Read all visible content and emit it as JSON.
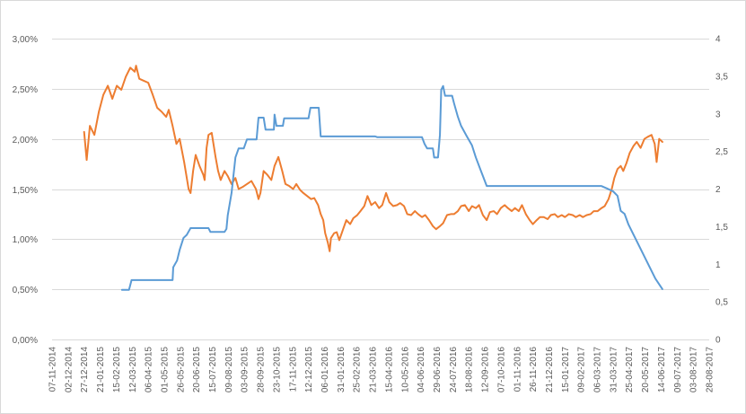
{
  "chart_data": {
    "type": "line",
    "grid": true,
    "legend": "none",
    "x_range": [
      "07-11-2014",
      "28-08-2017"
    ],
    "x_ticks": [
      "07-11-2014",
      "02-12-2014",
      "27-12-2014",
      "21-01-2015",
      "15-02-2015",
      "12-03-2015",
      "06-04-2015",
      "01-05-2015",
      "26-05-2015",
      "20-06-2015",
      "15-07-2015",
      "09-08-2015",
      "03-09-2015",
      "28-09-2015",
      "23-10-2015",
      "17-11-2015",
      "12-12-2015",
      "06-01-2016",
      "31-01-2016",
      "25-02-2016",
      "21-03-2016",
      "15-04-2016",
      "10-05-2016",
      "04-06-2016",
      "29-06-2016",
      "24-07-2016",
      "18-08-2016",
      "12-09-2016",
      "07-10-2016",
      "01-11-2016",
      "26-11-2016",
      "21-12-2016",
      "15-01-2017",
      "09-02-2017",
      "06-03-2017",
      "31-03-2017",
      "25-04-2017",
      "20-05-2017",
      "14-06-2017",
      "09-07-2017",
      "03-08-2017",
      "28-08-2017"
    ],
    "y_left": {
      "range": [
        0,
        3
      ],
      "ticks": [
        "0,00%",
        "0,50%",
        "1,00%",
        "1,50%",
        "2,00%",
        "2,50%",
        "3,00%"
      ]
    },
    "y_right": {
      "range": [
        0,
        4
      ],
      "ticks": [
        "0",
        "0,5",
        "1",
        "1,5",
        "2",
        "2,5",
        "3",
        "3,5",
        "4"
      ]
    },
    "series": [
      {
        "axis": "left",
        "color": "#ED7D31",
        "points": [
          [
            "27-12-2014",
            2.07
          ],
          [
            "31-12-2014",
            1.79
          ],
          [
            "05-01-2015",
            2.13
          ],
          [
            "12-01-2015",
            2.04
          ],
          [
            "19-01-2015",
            2.27
          ],
          [
            "26-01-2015",
            2.44
          ],
          [
            "02-02-2015",
            2.53
          ],
          [
            "09-02-2015",
            2.4
          ],
          [
            "16-02-2015",
            2.53
          ],
          [
            "23-02-2015",
            2.49
          ],
          [
            "02-03-2015",
            2.62
          ],
          [
            "09-03-2015",
            2.71
          ],
          [
            "16-03-2015",
            2.67
          ],
          [
            "18-03-2015",
            2.73
          ],
          [
            "23-03-2015",
            2.6
          ],
          [
            "30-03-2015",
            2.58
          ],
          [
            "06-04-2015",
            2.56
          ],
          [
            "13-04-2015",
            2.44
          ],
          [
            "20-04-2015",
            2.31
          ],
          [
            "27-04-2015",
            2.27
          ],
          [
            "04-05-2015",
            2.22
          ],
          [
            "08-05-2015",
            2.29
          ],
          [
            "14-05-2015",
            2.13
          ],
          [
            "20-05-2015",
            1.95
          ],
          [
            "25-05-2015",
            2.0
          ],
          [
            "01-06-2015",
            1.77
          ],
          [
            "08-06-2015",
            1.5
          ],
          [
            "11-06-2015",
            1.46
          ],
          [
            "15-06-2015",
            1.68
          ],
          [
            "19-06-2015",
            1.84
          ],
          [
            "25-06-2015",
            1.73
          ],
          [
            "01-07-2015",
            1.64
          ],
          [
            "03-07-2015",
            1.59
          ],
          [
            "06-07-2015",
            1.91
          ],
          [
            "09-07-2015",
            2.04
          ],
          [
            "14-07-2015",
            2.06
          ],
          [
            "20-07-2015",
            1.82
          ],
          [
            "24-07-2015",
            1.68
          ],
          [
            "28-07-2015",
            1.59
          ],
          [
            "03-08-2015",
            1.68
          ],
          [
            "08-08-2015",
            1.63
          ],
          [
            "14-08-2015",
            1.55
          ],
          [
            "20-08-2015",
            1.61
          ],
          [
            "25-08-2015",
            1.5
          ],
          [
            "31-08-2015",
            1.52
          ],
          [
            "07-09-2015",
            1.55
          ],
          [
            "14-09-2015",
            1.58
          ],
          [
            "21-09-2015",
            1.5
          ],
          [
            "25-09-2015",
            1.4
          ],
          [
            "28-09-2015",
            1.46
          ],
          [
            "03-10-2015",
            1.68
          ],
          [
            "09-10-2015",
            1.64
          ],
          [
            "15-10-2015",
            1.59
          ],
          [
            "20-10-2015",
            1.73
          ],
          [
            "26-10-2015",
            1.82
          ],
          [
            "01-11-2015",
            1.68
          ],
          [
            "06-11-2015",
            1.55
          ],
          [
            "12-11-2015",
            1.53
          ],
          [
            "18-11-2015",
            1.5
          ],
          [
            "23-11-2015",
            1.55
          ],
          [
            "29-11-2015",
            1.49
          ],
          [
            "04-12-2015",
            1.46
          ],
          [
            "10-12-2015",
            1.43
          ],
          [
            "16-12-2015",
            1.4
          ],
          [
            "21-12-2015",
            1.41
          ],
          [
            "27-12-2015",
            1.34
          ],
          [
            "31-12-2015",
            1.25
          ],
          [
            "04-01-2016",
            1.19
          ],
          [
            "07-01-2016",
            1.06
          ],
          [
            "11-01-2016",
            0.97
          ],
          [
            "14-01-2016",
            0.88
          ],
          [
            "16-01-2016",
            1.01
          ],
          [
            "21-01-2016",
            1.06
          ],
          [
            "25-01-2016",
            1.07
          ],
          [
            "29-01-2016",
            0.99
          ],
          [
            "04-02-2016",
            1.1
          ],
          [
            "09-02-2016",
            1.19
          ],
          [
            "15-02-2016",
            1.15
          ],
          [
            "20-02-2016",
            1.21
          ],
          [
            "26-02-2016",
            1.24
          ],
          [
            "02-03-2016",
            1.28
          ],
          [
            "08-03-2016",
            1.33
          ],
          [
            "13-03-2016",
            1.43
          ],
          [
            "19-03-2016",
            1.34
          ],
          [
            "25-03-2016",
            1.37
          ],
          [
            "31-03-2016",
            1.31
          ],
          [
            "05-04-2016",
            1.34
          ],
          [
            "11-04-2016",
            1.46
          ],
          [
            "16-04-2016",
            1.37
          ],
          [
            "22-04-2016",
            1.33
          ],
          [
            "28-04-2016",
            1.34
          ],
          [
            "03-05-2016",
            1.36
          ],
          [
            "09-05-2016",
            1.33
          ],
          [
            "14-05-2016",
            1.25
          ],
          [
            "20-05-2016",
            1.24
          ],
          [
            "26-05-2016",
            1.28
          ],
          [
            "31-05-2016",
            1.25
          ],
          [
            "06-06-2016",
            1.22
          ],
          [
            "11-06-2016",
            1.24
          ],
          [
            "17-06-2016",
            1.19
          ],
          [
            "23-06-2016",
            1.13
          ],
          [
            "28-06-2016",
            1.1
          ],
          [
            "04-07-2016",
            1.13
          ],
          [
            "09-07-2016",
            1.16
          ],
          [
            "15-07-2016",
            1.24
          ],
          [
            "21-07-2016",
            1.25
          ],
          [
            "26-07-2016",
            1.25
          ],
          [
            "01-08-2016",
            1.28
          ],
          [
            "06-08-2016",
            1.33
          ],
          [
            "12-08-2016",
            1.34
          ],
          [
            "18-08-2016",
            1.28
          ],
          [
            "23-08-2016",
            1.33
          ],
          [
            "29-08-2016",
            1.31
          ],
          [
            "03-09-2016",
            1.34
          ],
          [
            "09-09-2016",
            1.24
          ],
          [
            "15-09-2016",
            1.19
          ],
          [
            "20-09-2016",
            1.27
          ],
          [
            "26-09-2016",
            1.28
          ],
          [
            "01-10-2016",
            1.25
          ],
          [
            "07-10-2016",
            1.31
          ],
          [
            "13-10-2016",
            1.34
          ],
          [
            "18-10-2016",
            1.31
          ],
          [
            "24-10-2016",
            1.28
          ],
          [
            "29-10-2016",
            1.31
          ],
          [
            "04-11-2016",
            1.28
          ],
          [
            "09-11-2016",
            1.34
          ],
          [
            "15-11-2016",
            1.25
          ],
          [
            "21-11-2016",
            1.19
          ],
          [
            "26-11-2016",
            1.15
          ],
          [
            "02-12-2016",
            1.19
          ],
          [
            "07-12-2016",
            1.22
          ],
          [
            "13-12-2016",
            1.22
          ],
          [
            "19-12-2016",
            1.2
          ],
          [
            "24-12-2016",
            1.24
          ],
          [
            "30-12-2016",
            1.25
          ],
          [
            "04-01-2017",
            1.22
          ],
          [
            "10-01-2017",
            1.24
          ],
          [
            "15-01-2017",
            1.22
          ],
          [
            "21-01-2017",
            1.25
          ],
          [
            "27-01-2017",
            1.24
          ],
          [
            "01-02-2017",
            1.22
          ],
          [
            "07-02-2017",
            1.24
          ],
          [
            "12-02-2017",
            1.22
          ],
          [
            "18-02-2017",
            1.24
          ],
          [
            "24-02-2017",
            1.25
          ],
          [
            "01-03-2017",
            1.28
          ],
          [
            "07-03-2017",
            1.28
          ],
          [
            "13-03-2017",
            1.31
          ],
          [
            "18-03-2017",
            1.33
          ],
          [
            "24-03-2017",
            1.4
          ],
          [
            "29-03-2017",
            1.5
          ],
          [
            "02-04-2017",
            1.61
          ],
          [
            "07-04-2017",
            1.7
          ],
          [
            "12-04-2017",
            1.73
          ],
          [
            "16-04-2017",
            1.68
          ],
          [
            "21-04-2017",
            1.76
          ],
          [
            "26-04-2017",
            1.86
          ],
          [
            "02-05-2017",
            1.93
          ],
          [
            "07-05-2017",
            1.97
          ],
          [
            "13-05-2017",
            1.91
          ],
          [
            "19-05-2017",
            2.0
          ],
          [
            "24-05-2017",
            2.02
          ],
          [
            "30-05-2017",
            2.04
          ],
          [
            "04-06-2017",
            1.95
          ],
          [
            "07-06-2017",
            1.77
          ],
          [
            "11-06-2017",
            2.0
          ],
          [
            "16-06-2017",
            1.97
          ]
        ]
      },
      {
        "axis": "right",
        "color": "#5B9BD5",
        "points": [
          [
            "24-02-2015",
            0.66
          ],
          [
            "07-03-2015",
            0.66
          ],
          [
            "11-03-2015",
            0.79
          ],
          [
            "14-05-2015",
            0.79
          ],
          [
            "15-05-2015",
            0.96
          ],
          [
            "21-05-2015",
            1.05
          ],
          [
            "25-05-2015",
            1.19
          ],
          [
            "31-05-2015",
            1.35
          ],
          [
            "05-06-2015",
            1.39
          ],
          [
            "11-06-2015",
            1.48
          ],
          [
            "09-07-2015",
            1.48
          ],
          [
            "12-07-2015",
            1.43
          ],
          [
            "03-08-2015",
            1.43
          ],
          [
            "06-08-2015",
            1.47
          ],
          [
            "08-08-2015",
            1.65
          ],
          [
            "14-08-2015",
            1.95
          ],
          [
            "20-08-2015",
            2.42
          ],
          [
            "25-08-2015",
            2.54
          ],
          [
            "02-09-2015",
            2.54
          ],
          [
            "07-09-2015",
            2.66
          ],
          [
            "22-09-2015",
            2.66
          ],
          [
            "25-09-2015",
            2.95
          ],
          [
            "03-10-2015",
            2.95
          ],
          [
            "06-10-2015",
            2.79
          ],
          [
            "19-10-2015",
            2.79
          ],
          [
            "20-10-2015",
            2.99
          ],
          [
            "23-10-2015",
            2.84
          ],
          [
            "02-11-2015",
            2.84
          ],
          [
            "04-11-2015",
            2.94
          ],
          [
            "12-12-2015",
            2.94
          ],
          [
            "15-12-2015",
            3.08
          ],
          [
            "28-12-2015",
            3.08
          ],
          [
            "31-12-2015",
            2.7
          ],
          [
            "25-03-2016",
            2.7
          ],
          [
            "28-03-2016",
            2.69
          ],
          [
            "06-06-2016",
            2.69
          ],
          [
            "10-06-2016",
            2.6
          ],
          [
            "14-06-2016",
            2.54
          ],
          [
            "23-06-2016",
            2.54
          ],
          [
            "25-06-2016",
            2.42
          ],
          [
            "01-07-2016",
            2.42
          ],
          [
            "04-07-2016",
            2.72
          ],
          [
            "06-07-2016",
            3.32
          ],
          [
            "09-07-2016",
            3.37
          ],
          [
            "12-07-2016",
            3.24
          ],
          [
            "23-07-2016",
            3.24
          ],
          [
            "26-07-2016",
            3.14
          ],
          [
            "01-08-2016",
            2.96
          ],
          [
            "06-08-2016",
            2.84
          ],
          [
            "15-08-2016",
            2.7
          ],
          [
            "23-08-2016",
            2.58
          ],
          [
            "29-08-2016",
            2.42
          ],
          [
            "06-09-2016",
            2.24
          ],
          [
            "15-09-2016",
            2.04
          ],
          [
            "13-03-2017",
            2.04
          ],
          [
            "21-03-2017",
            2.01
          ],
          [
            "31-03-2017",
            1.97
          ],
          [
            "07-04-2017",
            1.91
          ],
          [
            "12-04-2017",
            1.71
          ],
          [
            "18-04-2017",
            1.67
          ],
          [
            "24-04-2017",
            1.53
          ],
          [
            "08-05-2017",
            1.29
          ],
          [
            "22-05-2017",
            1.05
          ],
          [
            "05-06-2017",
            0.81
          ],
          [
            "16-06-2017",
            0.67
          ]
        ]
      }
    ],
    "colors": {
      "grid": "#D9D9D9",
      "text": "#595959",
      "border": "#D9D9D9"
    }
  }
}
